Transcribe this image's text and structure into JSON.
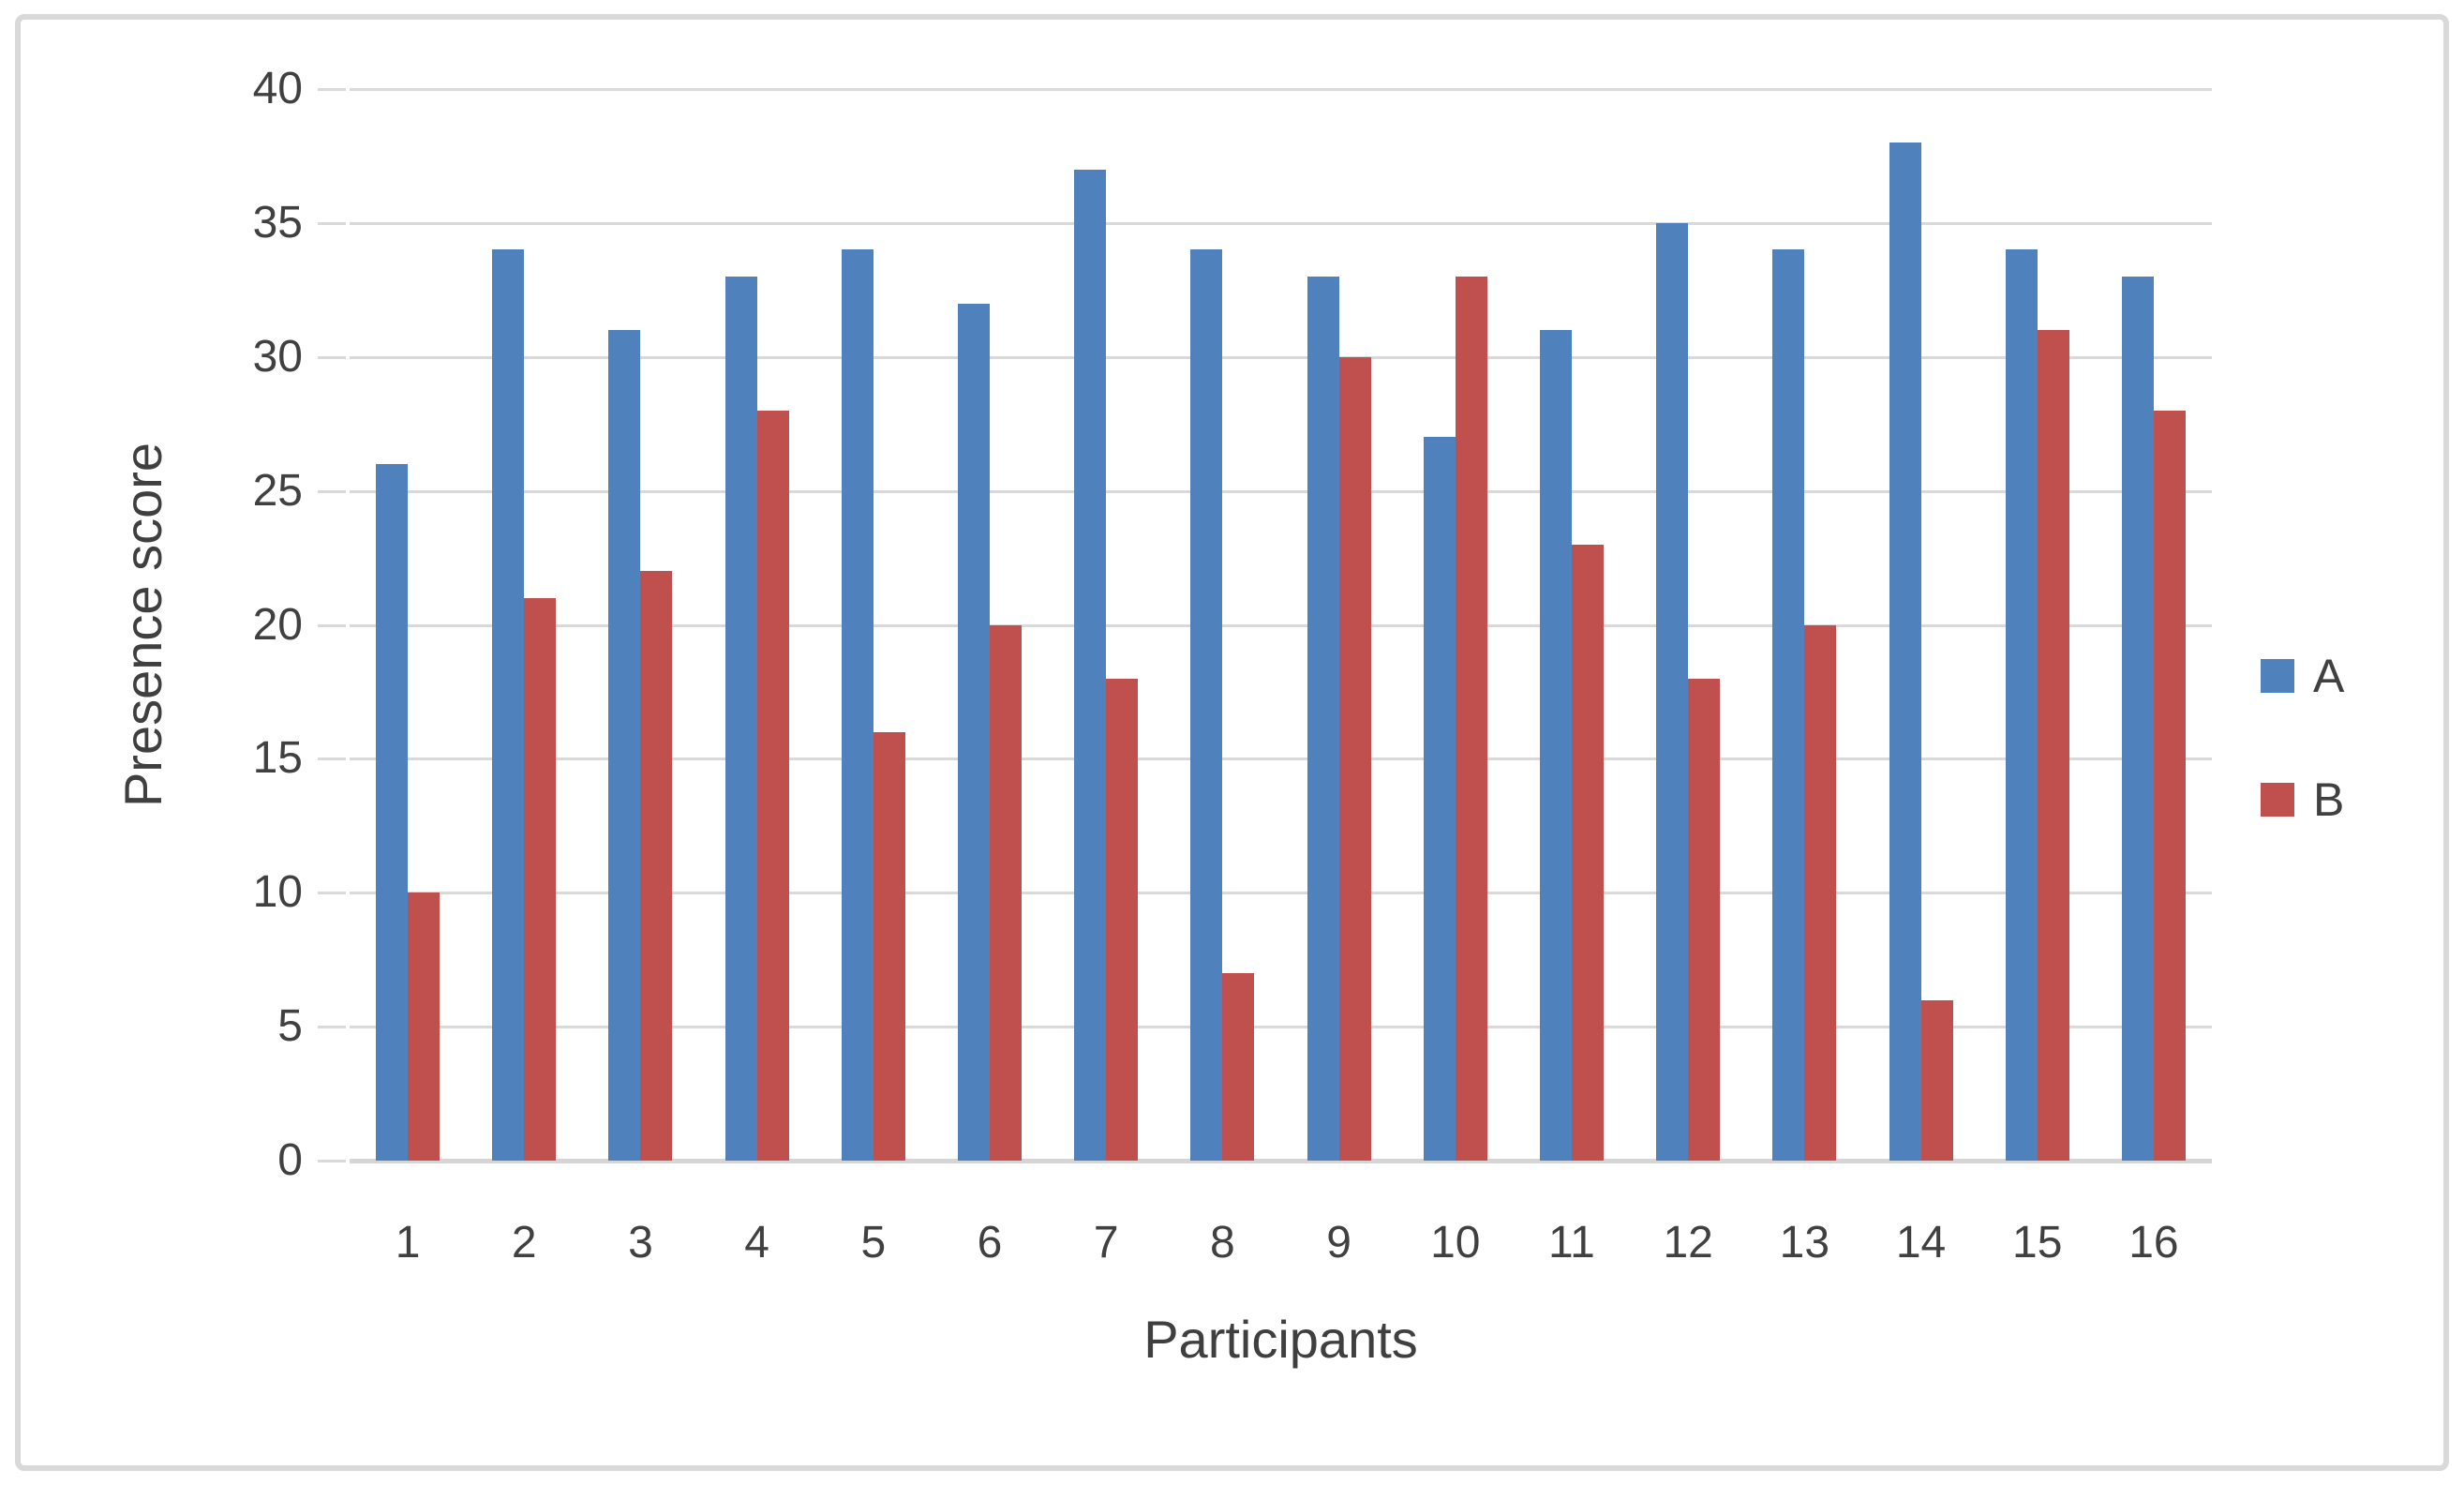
{
  "figure": {
    "background": "#FFFFFF",
    "border_color": "#D9D9D9"
  },
  "chart_data": {
    "type": "bar",
    "title": "",
    "xlabel": "Participants",
    "ylabel": "Presence score",
    "categories": [
      "1",
      "2",
      "3",
      "4",
      "5",
      "6",
      "7",
      "8",
      "9",
      "10",
      "11",
      "12",
      "13",
      "14",
      "15",
      "16"
    ],
    "series": [
      {
        "name": "A",
        "color": "#4F81BD",
        "values": [
          26,
          34,
          31,
          33,
          34,
          32,
          37,
          34,
          33,
          27,
          31,
          35,
          34,
          38,
          34,
          33
        ]
      },
      {
        "name": "B",
        "color": "#C0504D",
        "values": [
          10,
          21,
          22,
          28,
          16,
          20,
          18,
          7,
          30,
          33,
          23,
          18,
          20,
          6,
          31,
          28
        ]
      }
    ],
    "ylim": [
      0,
      40
    ],
    "y_tick_step": 5,
    "y_ticks": [
      "0",
      "5",
      "10",
      "15",
      "20",
      "25",
      "30",
      "35",
      "40"
    ],
    "grid": true,
    "gridline_color": "#D9D9D9",
    "axis_line_color": "#D5D5D5",
    "tick_text_color": "#404040",
    "legend_position": "right",
    "legend_entries": [
      "A",
      "B"
    ]
  }
}
